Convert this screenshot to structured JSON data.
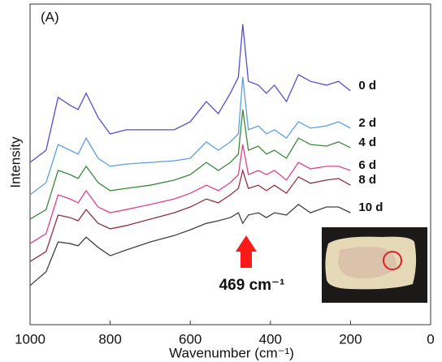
{
  "chart_data": {
    "type": "line",
    "x_label": "Wavenumber (cm⁻¹)",
    "y_label": "Intensity",
    "annotations": [
      "(A)",
      "469 cm⁻¹"
    ],
    "xlim": [
      1000,
      0
    ],
    "xticks": [
      1000,
      800,
      600,
      400,
      200,
      0
    ],
    "ylim": [
      0,
      100
    ],
    "x": [
      1000,
      960,
      930,
      900,
      880,
      860,
      830,
      800,
      760,
      700,
      640,
      600,
      560,
      530,
      500,
      480,
      469,
      455,
      430,
      410,
      390,
      360,
      330,
      300,
      260,
      230,
      200
    ],
    "series": [
      {
        "name": "0 d",
        "color": "#5050d0",
        "values": [
          50.6,
          54.4,
          70.9,
          68.4,
          67.1,
          72.2,
          64.6,
          59.5,
          60.8,
          60.8,
          60.8,
          63.3,
          69.6,
          65.8,
          72.2,
          77.2,
          93.7,
          75.9,
          74.7,
          72.2,
          74.7,
          69.6,
          78.0,
          75.9,
          74.7,
          75.9,
          72.9
        ]
      },
      {
        "name": "2 d",
        "color": "#5aa0e0",
        "values": [
          40.5,
          44.3,
          56.2,
          54.4,
          53.2,
          58.2,
          51.9,
          49.4,
          50.1,
          50.6,
          51.1,
          51.9,
          57.0,
          54.4,
          57.0,
          59.5,
          77.2,
          60.8,
          62.0,
          59.5,
          60.8,
          58.2,
          63.3,
          61.3,
          62.0,
          63.3,
          61.3
        ]
      },
      {
        "name": "4 d",
        "color": "#3a8a3a",
        "values": [
          32.9,
          35.9,
          48.1,
          46.8,
          45.6,
          49.4,
          44.3,
          41.8,
          42.5,
          43.5,
          45.1,
          46.8,
          50.6,
          48.1,
          50.6,
          53.2,
          67.1,
          54.4,
          55.7,
          53.2,
          54.4,
          51.9,
          58.2,
          56.2,
          55.7,
          57.0,
          55.2
        ]
      },
      {
        "name": "6 d",
        "color": "#e0408a",
        "values": [
          25.3,
          28.4,
          40.5,
          39.2,
          38.0,
          41.8,
          36.7,
          34.9,
          35.9,
          37.5,
          39.2,
          41.0,
          43.5,
          41.8,
          44.3,
          46.8,
          56.2,
          46.8,
          48.1,
          46.8,
          48.1,
          45.1,
          50.6,
          48.6,
          49.4,
          49.4,
          48.1
        ]
      },
      {
        "name": "8 d",
        "color": "#903040",
        "values": [
          19.7,
          22.8,
          34.2,
          33.4,
          32.4,
          35.9,
          31.6,
          29.9,
          30.9,
          32.9,
          34.9,
          36.7,
          39.2,
          38.0,
          40.5,
          42.5,
          48.1,
          42.5,
          43.5,
          41.8,
          43.5,
          41.0,
          46.1,
          44.1,
          45.1,
          45.6,
          43.5
        ]
      },
      {
        "name": "10 d",
        "color": "#404040",
        "values": [
          12.2,
          16.5,
          25.8,
          25.3,
          24.6,
          27.3,
          24.1,
          21.5,
          23.3,
          25.8,
          27.8,
          29.6,
          31.6,
          32.4,
          33.4,
          34.9,
          31.6,
          34.2,
          34.9,
          33.4,
          34.9,
          34.2,
          37.5,
          34.9,
          36.7,
          36.7,
          34.9
        ]
      }
    ]
  }
}
